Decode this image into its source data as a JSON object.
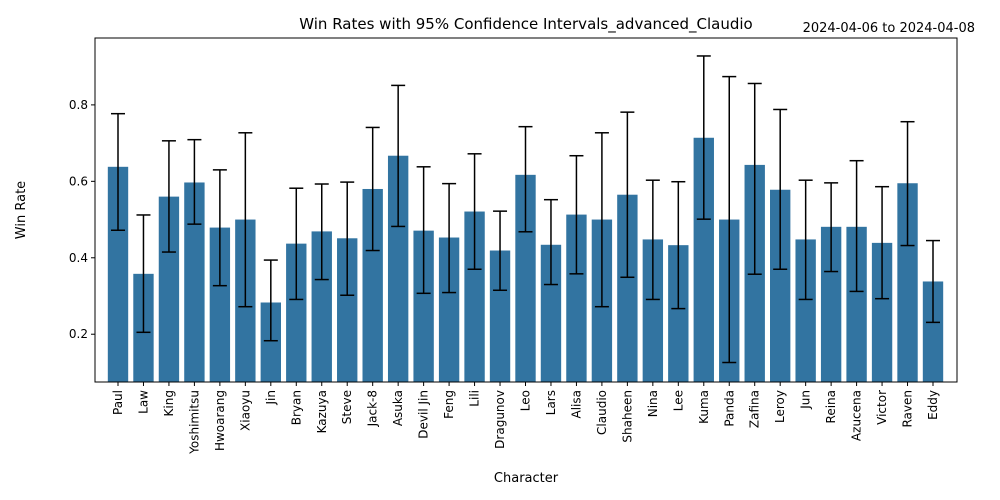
{
  "chart_data": {
    "type": "bar",
    "title": "Win Rates with 95% Confidence Intervals_advanced_Claudio",
    "date_range": "2024-04-06 to 2024-04-08",
    "xlabel": "Character",
    "ylabel": "Win Rate",
    "ylim": [
      0.075,
      0.975
    ],
    "yticks": [
      0.2,
      0.4,
      0.6,
      0.8
    ],
    "ytick_labels": [
      "0.2",
      "0.4",
      "0.6",
      "0.8"
    ],
    "grid": false,
    "bar_color": "#3274a1",
    "categories": [
      "Paul",
      "Law",
      "King",
      "Yoshimitsu",
      "Hwoarang",
      "Xiaoyu",
      "Jin",
      "Bryan",
      "Kazuya",
      "Steve",
      "Jack-8",
      "Asuka",
      "Devil Jin",
      "Feng",
      "Lili",
      "Dragunov",
      "Leo",
      "Lars",
      "Alisa",
      "Claudio",
      "Shaheen",
      "Nina",
      "Lee",
      "Kuma",
      "Panda",
      "Zafina",
      "Leroy",
      "Jun",
      "Reina",
      "Azucena",
      "Victor",
      "Raven",
      "Eddy"
    ],
    "values": [
      0.638,
      0.358,
      0.56,
      0.597,
      0.479,
      0.5,
      0.283,
      0.437,
      0.469,
      0.451,
      0.58,
      0.667,
      0.471,
      0.453,
      0.521,
      0.419,
      0.617,
      0.434,
      0.513,
      0.5,
      0.565,
      0.448,
      0.433,
      0.714,
      0.5,
      0.643,
      0.578,
      0.448,
      0.481,
      0.481,
      0.439,
      0.595,
      0.338
    ],
    "ci_low": [
      0.472,
      0.205,
      0.415,
      0.488,
      0.327,
      0.272,
      0.183,
      0.291,
      0.343,
      0.302,
      0.419,
      0.482,
      0.307,
      0.309,
      0.37,
      0.315,
      0.468,
      0.33,
      0.358,
      0.272,
      0.349,
      0.291,
      0.267,
      0.501,
      0.126,
      0.357,
      0.37,
      0.291,
      0.364,
      0.312,
      0.293,
      0.432,
      0.231
    ],
    "ci_high": [
      0.777,
      0.512,
      0.706,
      0.709,
      0.63,
      0.727,
      0.394,
      0.582,
      0.593,
      0.598,
      0.741,
      0.851,
      0.638,
      0.594,
      0.672,
      0.522,
      0.743,
      0.552,
      0.667,
      0.727,
      0.781,
      0.603,
      0.599,
      0.928,
      0.874,
      0.856,
      0.788,
      0.603,
      0.596,
      0.654,
      0.586,
      0.756,
      0.445
    ]
  }
}
